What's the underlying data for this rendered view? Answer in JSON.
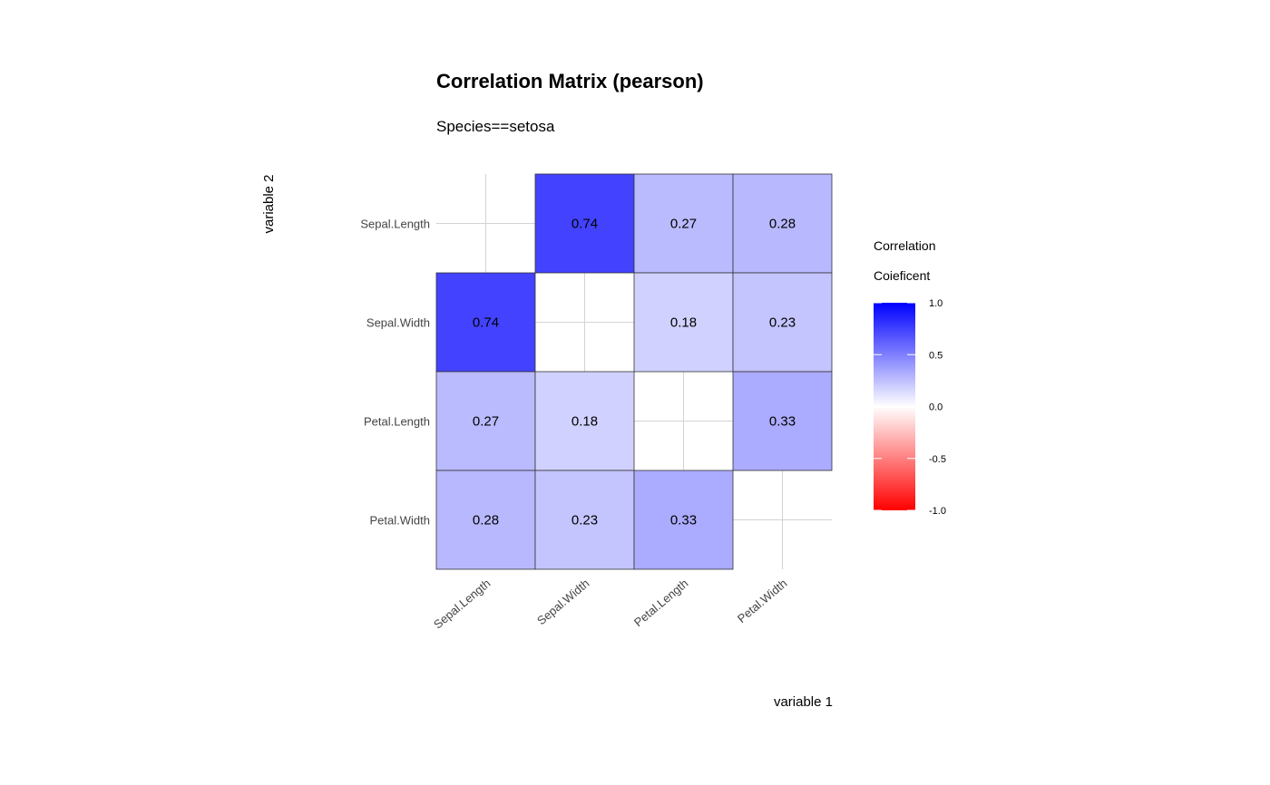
{
  "chart_data": {
    "type": "heatmap",
    "title": "Correlation Matrix (pearson)",
    "subtitle": "Species==setosa",
    "xlabel": "variable 1",
    "ylabel": "variable 2",
    "x_categories": [
      "Sepal.Length",
      "Sepal.Width",
      "Petal.Length",
      "Petal.Width"
    ],
    "y_categories": [
      "Sepal.Length",
      "Sepal.Width",
      "Petal.Length",
      "Petal.Width"
    ],
    "matrix": [
      [
        null,
        0.74,
        0.27,
        0.28
      ],
      [
        0.74,
        null,
        0.18,
        0.23
      ],
      [
        0.27,
        0.18,
        null,
        0.33
      ],
      [
        0.28,
        0.23,
        0.33,
        null
      ]
    ],
    "cell_labels": [
      [
        null,
        "0.74",
        "0.27",
        "0.28"
      ],
      [
        "0.74",
        null,
        "0.18",
        "0.23"
      ],
      [
        "0.27",
        "0.18",
        null,
        "0.33"
      ],
      [
        "0.28",
        "0.23",
        "0.33",
        null
      ]
    ],
    "legend": {
      "title_line1": "Correlation",
      "title_line2": "Coieficent",
      "range": [
        -1.0,
        1.0
      ],
      "ticks": [
        1.0,
        0.5,
        0.0,
        -0.5,
        -1.0
      ],
      "tick_labels": [
        "1.0",
        "0.5",
        "0.0",
        "-0.5",
        "-1.0"
      ],
      "placement": "right"
    },
    "colors": {
      "high": "#0000ff",
      "mid": "#ffffff",
      "low": "#ff0000"
    },
    "grid": true
  }
}
